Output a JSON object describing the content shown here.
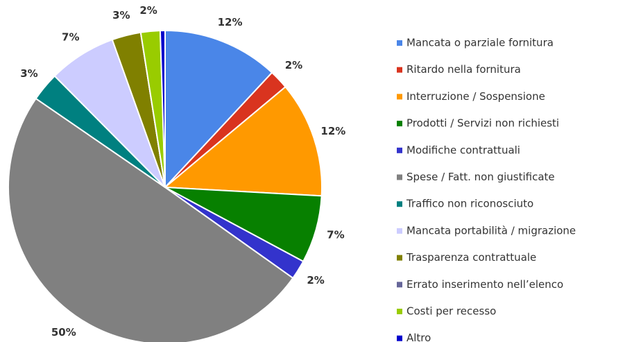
{
  "chart_data": {
    "type": "pie",
    "categories": [
      "Mancata o parziale fornitura",
      "Ritardo nella fornitura",
      "Interruzione / Sospensione",
      "Prodotti / Servizi non richiesti",
      "Modifiche contrattuali",
      "Spese / Fatt. non giustificate",
      "Traffico non riconosciuto",
      "Mancata portabilità / migrazione",
      "Trasparenza contrattuale",
      "Errato inserimento nell’elenco",
      "Costi per recesso",
      "Altro"
    ],
    "values": [
      12,
      2,
      12,
      7,
      2,
      50,
      3,
      7,
      3,
      0,
      2,
      0.5
    ],
    "value_labels": [
      "12%",
      "2%",
      "12%",
      "7%",
      "2%",
      "50%",
      "3%",
      "7%",
      "3%",
      null,
      "2%",
      null
    ],
    "colors": [
      "#4a86e8",
      "#d9341f",
      "#ff9900",
      "#078000",
      "#3333cc",
      "#808080",
      "#008080",
      "#ccccff",
      "#808000",
      "#666699",
      "#99cc00",
      "#0000cc"
    ],
    "legend": "right"
  }
}
